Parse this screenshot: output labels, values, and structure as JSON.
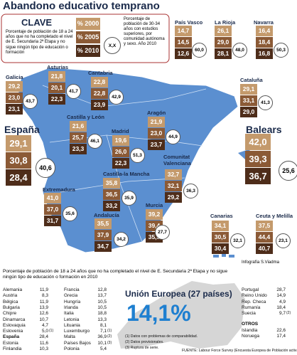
{
  "header": {
    "title": "Abandono educativo temprano"
  },
  "key": {
    "title": "CLAVE",
    "description": "Porcentaje de población de 18 a 24 años que no ha completado el nivel de E. Secundaria 2ª Etapa y no sigue ningún tipo de educación o formación",
    "years": [
      "% 2000",
      "% 2005",
      "% 2010"
    ],
    "circle_sample": "X,X",
    "circle_description": "Porcentaje de población de 30-34 años con estudios superiores, por comunidad autónoma y sexo. Año 2010"
  },
  "regions": [
    {
      "name": "País Vasco",
      "values": [
        "14,7",
        "14,5",
        "12,6"
      ],
      "tertiary": "60,0"
    },
    {
      "name": "La Rioja",
      "values": [
        "26,1",
        "29,0",
        "28,1"
      ],
      "tertiary": "48,0"
    },
    {
      "name": "Navarra",
      "values": [
        "16,4",
        "18,4",
        "16,8"
      ],
      "tertiary": "50,3"
    },
    {
      "name": "Galicia",
      "values": [
        "29,2",
        "23,0",
        "23,1"
      ],
      "tertiary": "43,7"
    },
    {
      "name": "Asturias",
      "values": [
        "21,8",
        "20,1",
        "22,3"
      ],
      "tertiary": "41,7"
    },
    {
      "name": "Cantabria",
      "values": [
        "22,8",
        "22,8",
        "23,9"
      ],
      "tertiary": "42,9"
    },
    {
      "name": "Cataluña",
      "values": [
        "29,1",
        "33,1",
        "29,0"
      ],
      "tertiary": "41,3"
    },
    {
      "name": "Castilla y León",
      "values": [
        "21,6",
        "25,7",
        "23,3"
      ],
      "tertiary": "46,1"
    },
    {
      "name": "Madrid",
      "values": [
        "19,6",
        "26,0",
        "22,3"
      ],
      "tertiary": "51,3"
    },
    {
      "name": "Aragón",
      "values": [
        "21,9",
        "23,0",
        "23,7"
      ],
      "tertiary": "44,9"
    },
    {
      "name": "España",
      "values": [
        "29,1",
        "30,8",
        "28,4"
      ],
      "tertiary": "40,6"
    },
    {
      "name": "Balears",
      "values": [
        "42,0",
        "39,3",
        "36,7"
      ],
      "tertiary": "25,6"
    },
    {
      "name": "Extremadura",
      "values": [
        "41,0",
        "37,0",
        "31,7"
      ],
      "tertiary": "35,6"
    },
    {
      "name": "Castilla-la Mancha",
      "values": [
        "35,8",
        "36,5",
        "33,2"
      ],
      "tertiary": "35,9"
    },
    {
      "name": "Comunitat Valenciana",
      "values": [
        "32,7",
        "32,1",
        "29,2"
      ],
      "tertiary": "36,3"
    },
    {
      "name": "Andalucía",
      "values": [
        "35,5",
        "37,9",
        "34,7"
      ],
      "tertiary": "34,2"
    },
    {
      "name": "Murcia",
      "values": [
        "39,2",
        "39,4",
        "35,5"
      ],
      "tertiary": "27,7"
    },
    {
      "name": "Canarias",
      "values": [
        "34,1",
        "30,5",
        "30,4"
      ],
      "tertiary": "32,1"
    },
    {
      "name": "Ceuta y Melilla",
      "values": [
        "37,5",
        "44,4",
        "40,7"
      ],
      "tertiary": "23,1"
    }
  ],
  "credit": "Infografía S.Viadma",
  "europe": {
    "caption": "Porcentaje de población de 18 a 24 años que no ha completado el nivel de E. Secundaria 2ª Etapa y no sigue ningún tipo de educación o formación en 2010",
    "columns": [
      [
        {
          "country": "Alemania",
          "value": "11,9"
        },
        {
          "country": "Austria",
          "value": "8,3"
        },
        {
          "country": "Bélgica",
          "value": "11,9"
        },
        {
          "country": "Bulgaria",
          "value": "13,9"
        },
        {
          "country": "Chipre",
          "value": "12,6"
        },
        {
          "country": "Dinamarca",
          "value": "10,7"
        },
        {
          "country": "Eslovaquia",
          "value": "4,7"
        },
        {
          "country": "Eslovenia",
          "value": "5,0",
          "note": "(1)"
        },
        {
          "country": "España",
          "value": "28,4"
        },
        {
          "country": "Estonia",
          "value": "11,6"
        },
        {
          "country": "Finlandia",
          "value": "10,3"
        }
      ],
      [
        {
          "country": "Francia",
          "value": "12,8"
        },
        {
          "country": "Grecia",
          "value": "13,7"
        },
        {
          "country": "Hungría",
          "value": "10,5"
        },
        {
          "country": "Irlanda",
          "value": "10,5"
        },
        {
          "country": "Italia",
          "value": "18,8"
        },
        {
          "country": "Letonia",
          "value": "13,3"
        },
        {
          "country": "Lituania",
          "value": "8,1"
        },
        {
          "country": "Luxemburgo",
          "value": "7,1",
          "note": "(1)"
        },
        {
          "country": "Malta",
          "value": "36,9",
          "note": "(2)"
        },
        {
          "country": "Países Bajos",
          "value": "10,1",
          "note": "(3)"
        },
        {
          "country": "Polonia",
          "value": "5,4"
        }
      ],
      [
        {
          "country": "Portugal",
          "value": "28,7"
        },
        {
          "country": "Reino Unido",
          "value": "14,9"
        },
        {
          "country": "Rep. Checa",
          "value": "4,9"
        },
        {
          "country": "Rumanía",
          "value": "18,4"
        },
        {
          "country": "Suecia",
          "value": "9,7",
          "note": "(2)"
        }
      ]
    ],
    "eu_label": "Unión Europea (27 países)",
    "eu_value": "14,1%",
    "others_label": "OTROS",
    "others": [
      {
        "country": "Islandia",
        "value": "22,6"
      },
      {
        "country": "Noruega",
        "value": "17,4"
      }
    ],
    "notes": [
      "(1) Datos con problemas de comparabilidad.",
      "(2) Datos provisionales.",
      "(3) Ruptura de serie."
    ],
    "source": "FUENTE: Labour Force Survey (Encuesta Europea de Población activa)"
  }
}
